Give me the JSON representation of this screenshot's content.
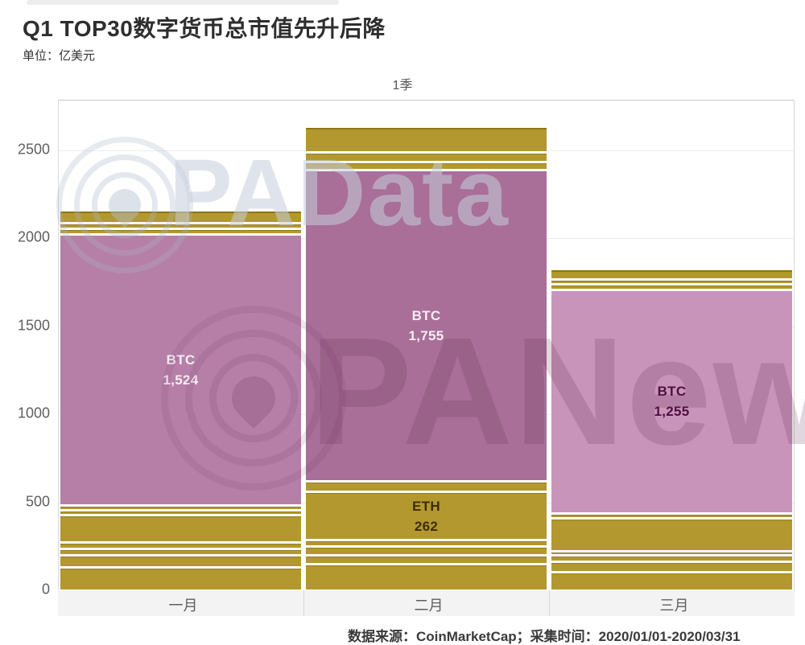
{
  "title": "Q1 TOP30数字货币总市值先升后降",
  "subtitle": "单位：亿美元",
  "footer": "数据来源：CoinMarketCap；采集时间：2020/01/01-2020/03/31",
  "watermarks": {
    "top": "PAData",
    "bottom": "PANews"
  },
  "colors": {
    "gold": "#b2982f",
    "gold_dark_edge": "#8d7619",
    "btc_jan": "#b67fa7",
    "btc_feb": "#a96f98",
    "btc_mar": "#c994ba",
    "label_light": "#f7ecf4",
    "label_dark": "#4d1140",
    "label_eth": "#3f2d04",
    "axis_text": "#5f5f5f"
  },
  "chart_data": {
    "type": "bar",
    "stacked": true,
    "title": "Q1 TOP30数字货币总市值先升后降",
    "unit": "亿美元",
    "period": "1季",
    "categories": [
      "一月",
      "二月",
      "三月"
    ],
    "y_ticks": [
      0,
      500,
      1000,
      1500,
      2000,
      2500
    ],
    "ylim": [
      0,
      2780
    ],
    "grid": "horizontal-faint",
    "legend": "none",
    "totals_approx": [
      2170,
      2650,
      1830
    ],
    "series_labeled": [
      {
        "name": "BTC",
        "values": [
          1524,
          1755,
          1255
        ],
        "labels": [
          "1,524",
          "1,755",
          "1,255"
        ]
      },
      {
        "name": "ETH",
        "values": [
          null,
          262,
          null
        ],
        "labels": [
          null,
          "262",
          null
        ]
      }
    ],
    "bars": [
      {
        "category": "一月",
        "segments": [
          {
            "name": "other",
            "value": 118,
            "color": "gold"
          },
          {
            "name": "other",
            "value": 55,
            "color": "gold"
          },
          {
            "name": "other",
            "value": 23,
            "color": "gold"
          },
          {
            "name": "other",
            "value": 23,
            "color": "gold"
          },
          {
            "name": "other",
            "value": 141,
            "color": "gold"
          },
          {
            "name": "other",
            "value": 16,
            "color": "gold"
          },
          {
            "name": "other",
            "value": 14,
            "color": "gold"
          },
          {
            "name": "BTC",
            "value": 1524,
            "color": "btc_jan",
            "label_name": "BTC",
            "label_value": "1,524",
            "label_color": "label_light"
          },
          {
            "name": "other",
            "value": 20,
            "color": "gold"
          },
          {
            "name": "other",
            "value": 18,
            "color": "gold"
          },
          {
            "name": "other",
            "value": 60,
            "color": "gold"
          }
        ]
      },
      {
        "category": "二月",
        "segments": [
          {
            "name": "other",
            "value": 136,
            "color": "gold"
          },
          {
            "name": "other",
            "value": 36,
            "color": "gold"
          },
          {
            "name": "other",
            "value": 36,
            "color": "gold"
          },
          {
            "name": "other",
            "value": 23,
            "color": "gold"
          },
          {
            "name": "ETH",
            "value": 262,
            "color": "gold",
            "label_name": "ETH",
            "label_value": "262",
            "label_color": "label_eth"
          },
          {
            "name": "other",
            "value": 45,
            "color": "gold"
          },
          {
            "name": "BTC",
            "value": 1755,
            "color": "btc_feb",
            "label_name": "BTC",
            "label_value": "1,755",
            "label_color": "label_light"
          },
          {
            "name": "other",
            "value": 30,
            "color": "gold"
          },
          {
            "name": "other",
            "value": 45,
            "color": "gold"
          },
          {
            "name": "other",
            "value": 130,
            "color": "gold"
          }
        ]
      },
      {
        "category": "三月",
        "segments": [
          {
            "name": "other",
            "value": 90,
            "color": "gold"
          },
          {
            "name": "other",
            "value": 45,
            "color": "gold"
          },
          {
            "name": "other",
            "value": 23,
            "color": "gold"
          },
          {
            "name": "other",
            "value": 9,
            "color": "gold"
          },
          {
            "name": "other",
            "value": 177,
            "color": "gold"
          },
          {
            "name": "other",
            "value": 14,
            "color": "gold"
          },
          {
            "name": "BTC",
            "value": 1255,
            "color": "btc_mar",
            "label_name": "BTC",
            "label_value": "1,255",
            "label_color": "label_dark"
          },
          {
            "name": "other",
            "value": 18,
            "color": "gold"
          },
          {
            "name": "other",
            "value": 14,
            "color": "gold"
          },
          {
            "name": "other",
            "value": 45,
            "color": "gold"
          }
        ]
      }
    ]
  }
}
